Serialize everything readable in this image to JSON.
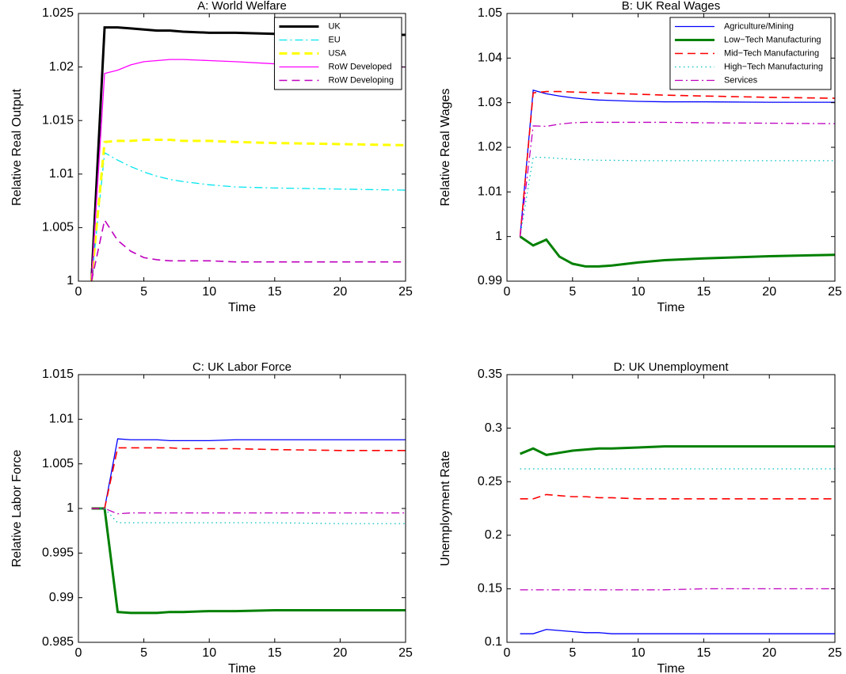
{
  "chart_data": [
    {
      "type": "line",
      "title": "A: World Welfare",
      "x_label": "Time",
      "y_label": "Relative Real Output",
      "x": [
        1,
        2,
        3,
        4,
        5,
        6,
        7,
        8,
        10,
        12,
        15,
        20,
        25
      ],
      "xlim": [
        0,
        25
      ],
      "xticks": [
        0,
        5,
        10,
        15,
        20,
        25
      ],
      "ylim": [
        1,
        1.025
      ],
      "yticks": [
        1,
        1.005,
        1.01,
        1.015,
        1.02,
        1.025
      ],
      "legend": "upper right",
      "series": [
        {
          "name": "UK",
          "color": "#000000",
          "linestyle": "solid-bold",
          "values": [
            1,
            1.0237,
            1.0237,
            1.0236,
            1.0235,
            1.0234,
            1.0234,
            1.0233,
            1.0232,
            1.0232,
            1.0231,
            1.023,
            1.023
          ]
        },
        {
          "name": "EU",
          "color": "#00e5ee",
          "linestyle": "dashdot",
          "values": [
            1,
            1.012,
            1.0113,
            1.0107,
            1.0102,
            1.0098,
            1.0095,
            1.0093,
            1.009,
            1.0088,
            1.0087,
            1.0086,
            1.0085
          ]
        },
        {
          "name": "USA",
          "color": "#ffff00",
          "linestyle": "dashed-bold",
          "values": [
            1,
            1.013,
            1.0131,
            1.0131,
            1.0132,
            1.0132,
            1.0132,
            1.0131,
            1.0131,
            1.013,
            1.0129,
            1.0128,
            1.0127
          ]
        },
        {
          "name": "RoW Developed",
          "color": "#ff00ff",
          "linestyle": "solid",
          "values": [
            1,
            1.0194,
            1.0197,
            1.0202,
            1.0205,
            1.0206,
            1.0207,
            1.0207,
            1.0206,
            1.0205,
            1.0203,
            1.0201,
            1.02
          ]
        },
        {
          "name": "RoW Developing",
          "color": "#bf00bf",
          "linestyle": "dashed",
          "values": [
            1,
            1.0057,
            1.0038,
            1.0028,
            1.0022,
            1.002,
            1.0019,
            1.0019,
            1.0019,
            1.0018,
            1.0018,
            1.0018,
            1.0018
          ]
        }
      ]
    },
    {
      "type": "line",
      "title": "B: UK Real Wages",
      "x_label": "Time",
      "y_label": "Relative Real Wages",
      "x": [
        1,
        2,
        3,
        4,
        5,
        6,
        7,
        8,
        10,
        12,
        15,
        20,
        25
      ],
      "xlim": [
        0,
        25
      ],
      "xticks": [
        0,
        5,
        10,
        15,
        20,
        25
      ],
      "ylim": [
        0.99,
        1.05
      ],
      "yticks": [
        0.99,
        1,
        1.01,
        1.02,
        1.03,
        1.04,
        1.05
      ],
      "legend": "upper right",
      "series": [
        {
          "name": "Agriculture/Mining",
          "color": "#0000ff",
          "linestyle": "solid",
          "values": [
            1,
            1.0328,
            1.032,
            1.0315,
            1.0311,
            1.0308,
            1.0306,
            1.0305,
            1.0303,
            1.0302,
            1.0302,
            1.0301,
            1.0301
          ]
        },
        {
          "name": "Low−Tech Manufacturing",
          "color": "#008000",
          "linestyle": "solid-bold",
          "values": [
            1,
            0.998,
            0.9993,
            0.9955,
            0.9939,
            0.9933,
            0.9933,
            0.9935,
            0.9942,
            0.9947,
            0.9951,
            0.9956,
            0.9959
          ]
        },
        {
          "name": "Mid−Tech Manufacturing",
          "color": "#ff0000",
          "linestyle": "dashed",
          "values": [
            1,
            1.0322,
            1.0325,
            1.0325,
            1.0324,
            1.0323,
            1.0322,
            1.0321,
            1.0319,
            1.0317,
            1.0315,
            1.0312,
            1.031
          ]
        },
        {
          "name": "High−Tech Manufacturing",
          "color": "#00bfbf",
          "linestyle": "dotted",
          "values": [
            1,
            1.0178,
            1.0177,
            1.0175,
            1.0173,
            1.0172,
            1.0171,
            1.0171,
            1.017,
            1.017,
            1.017,
            1.017,
            1.017
          ]
        },
        {
          "name": "Services",
          "color": "#bf00bf",
          "linestyle": "dashdot",
          "values": [
            1,
            1.0248,
            1.0247,
            1.0252,
            1.0255,
            1.0256,
            1.0256,
            1.0256,
            1.0256,
            1.0256,
            1.0255,
            1.0254,
            1.0253
          ]
        }
      ]
    },
    {
      "type": "line",
      "title": "C: UK Labor Force",
      "x_label": "Time",
      "y_label": "Relative Labor Force",
      "x": [
        1,
        2,
        3,
        4,
        5,
        6,
        7,
        8,
        10,
        12,
        15,
        20,
        25
      ],
      "xlim": [
        0,
        25
      ],
      "xticks": [
        0,
        5,
        10,
        15,
        20,
        25
      ],
      "ylim": [
        0.985,
        1.015
      ],
      "yticks": [
        0.985,
        0.99,
        0.995,
        1,
        1.005,
        1.01,
        1.015
      ],
      "series": [
        {
          "color": "#0000ff",
          "linestyle": "solid",
          "values": [
            1,
            1,
            1.0078,
            1.0077,
            1.0077,
            1.0077,
            1.0076,
            1.0076,
            1.0076,
            1.0077,
            1.0077,
            1.0077,
            1.0077
          ]
        },
        {
          "color": "#008000",
          "linestyle": "solid-bold",
          "values": [
            1,
            1,
            0.9884,
            0.9883,
            0.9883,
            0.9883,
            0.9884,
            0.9884,
            0.9885,
            0.9885,
            0.9886,
            0.9886,
            0.9886
          ]
        },
        {
          "color": "#ff0000",
          "linestyle": "dashed",
          "values": [
            1,
            1,
            1.0068,
            1.0068,
            1.0068,
            1.0068,
            1.0068,
            1.0067,
            1.0067,
            1.0067,
            1.0066,
            1.0065,
            1.0065
          ]
        },
        {
          "color": "#00bfbf",
          "linestyle": "dotted",
          "values": [
            1,
            1,
            0.9984,
            0.9984,
            0.9984,
            0.9984,
            0.9984,
            0.9984,
            0.9984,
            0.9984,
            0.9984,
            0.9983,
            0.9983
          ]
        },
        {
          "color": "#bf00bf",
          "linestyle": "dashdot",
          "values": [
            1,
            1,
            0.9994,
            0.9995,
            0.9995,
            0.9995,
            0.9995,
            0.9995,
            0.9995,
            0.9995,
            0.9995,
            0.9995,
            0.9995
          ]
        }
      ]
    },
    {
      "type": "line",
      "title": "D: UK Unemployment",
      "x_label": "Time",
      "y_label": "Unemployment Rate",
      "x": [
        1,
        2,
        3,
        4,
        5,
        6,
        7,
        8,
        10,
        12,
        15,
        20,
        25
      ],
      "xlim": [
        0,
        25
      ],
      "xticks": [
        0,
        5,
        10,
        15,
        20,
        25
      ],
      "ylim": [
        0.1,
        0.35
      ],
      "yticks": [
        0.1,
        0.15,
        0.2,
        0.25,
        0.3,
        0.35
      ],
      "series": [
        {
          "color": "#0000ff",
          "linestyle": "solid",
          "values": [
            0.108,
            0.108,
            0.112,
            0.111,
            0.11,
            0.109,
            0.109,
            0.108,
            0.108,
            0.108,
            0.108,
            0.108,
            0.108
          ]
        },
        {
          "color": "#008000",
          "linestyle": "solid-bold",
          "values": [
            0.276,
            0.281,
            0.275,
            0.277,
            0.279,
            0.28,
            0.281,
            0.281,
            0.282,
            0.283,
            0.283,
            0.283,
            0.283
          ]
        },
        {
          "color": "#ff0000",
          "linestyle": "dashed",
          "values": [
            0.234,
            0.234,
            0.238,
            0.237,
            0.236,
            0.236,
            0.235,
            0.235,
            0.234,
            0.234,
            0.234,
            0.234,
            0.234
          ]
        },
        {
          "color": "#00bfbf",
          "linestyle": "dotted",
          "values": [
            0.262,
            0.262,
            0.262,
            0.262,
            0.262,
            0.262,
            0.262,
            0.262,
            0.262,
            0.262,
            0.262,
            0.262,
            0.262
          ]
        },
        {
          "color": "#bf00bf",
          "linestyle": "dashdot",
          "values": [
            0.149,
            0.149,
            0.149,
            0.149,
            0.149,
            0.149,
            0.149,
            0.149,
            0.149,
            0.149,
            0.15,
            0.15,
            0.15
          ]
        }
      ]
    }
  ]
}
